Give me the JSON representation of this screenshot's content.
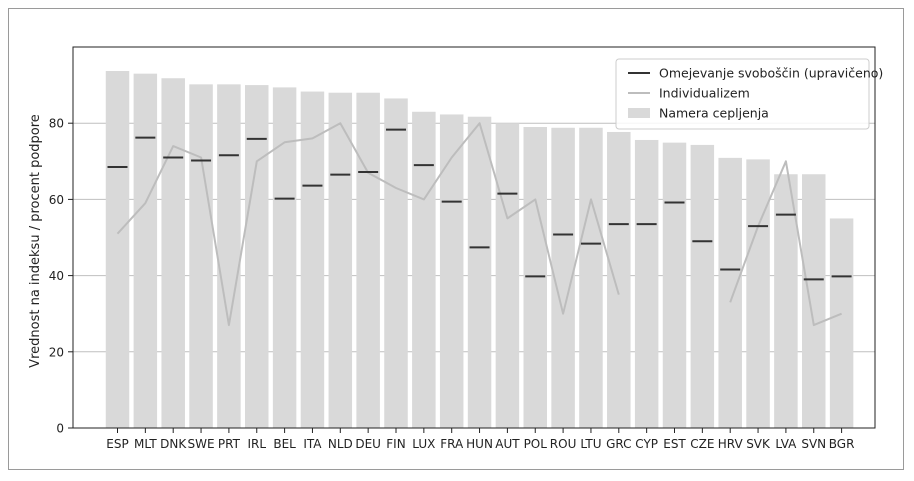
{
  "chart_data": {
    "type": "bar",
    "ylabel": "Vrednost na indeksu / procent podpore",
    "xlabel": "",
    "ylim": [
      0,
      100
    ],
    "yticks": [
      0,
      20,
      40,
      60,
      80
    ],
    "grid": "horizontal",
    "legend_position": "top-right",
    "categories": [
      "ESP",
      "MLT",
      "DNK",
      "SWE",
      "PRT",
      "IRL",
      "BEL",
      "ITA",
      "NLD",
      "DEU",
      "FIN",
      "LUX",
      "FRA",
      "HUN",
      "AUT",
      "POL",
      "ROU",
      "LTU",
      "GRC",
      "CYP",
      "EST",
      "CZE",
      "HRV",
      "SVK",
      "LVA",
      "SVN",
      "BGR"
    ],
    "series": [
      {
        "name": "Namera cepljenja",
        "kind": "bar",
        "color": "#d9d9d9",
        "values": [
          93.7,
          93.0,
          91.8,
          90.2,
          90.2,
          90.0,
          89.4,
          88.3,
          88.0,
          88.0,
          86.5,
          83.0,
          82.3,
          81.7,
          80.0,
          79.0,
          78.8,
          78.8,
          77.7,
          75.6,
          74.9,
          74.3,
          70.9,
          70.5,
          66.6,
          66.6,
          55.0
        ]
      },
      {
        "name": "Omejevanje svoboščin (upravičeno)",
        "kind": "marker",
        "color": "#333333",
        "values": [
          68.5,
          76.2,
          71.0,
          70.2,
          71.6,
          75.9,
          60.2,
          63.6,
          66.5,
          67.2,
          78.3,
          69.0,
          59.4,
          47.4,
          61.5,
          39.8,
          50.8,
          48.4,
          53.5,
          53.5,
          59.2,
          49.0,
          41.6,
          53.0,
          56.0,
          39.0,
          39.8
        ]
      },
      {
        "name": "Individualizem",
        "kind": "line",
        "color": "#bdbdbd",
        "values": [
          51,
          59,
          74,
          71,
          27,
          70,
          75,
          76,
          80,
          67,
          63,
          60,
          71,
          80,
          55,
          60,
          30,
          60,
          35,
          null,
          null,
          null,
          33,
          53,
          70,
          27,
          30
        ]
      }
    ]
  },
  "colors": {
    "bar": "#d9d9d9",
    "marker": "#333333",
    "line": "#bdbdbd",
    "grid": "#bfbfbf",
    "axis": "#222222"
  }
}
